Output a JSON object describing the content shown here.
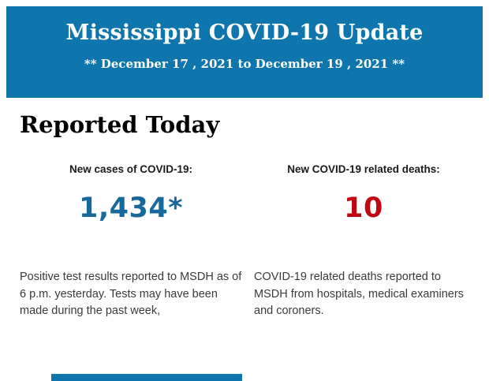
{
  "header": {
    "title": "Mississippi COVID-19 Update",
    "date_range": "** December 17 , 2021 to December 19 , 2021 **",
    "background_color": "#0e76ad",
    "text_color": "#ffffff"
  },
  "section": {
    "heading": "Reported Today"
  },
  "stats": [
    {
      "label": "New cases of COVID-19:",
      "value": "1,434*",
      "value_color": "#17699c",
      "description": "Positive test results reported to MSDH as of 6 p.m. yesterday. Tests may have been made during the past week,"
    },
    {
      "label": "New COVID-19 related deaths:",
      "value": "10",
      "value_color": "#c00712",
      "description": "COVID-19 related deaths reported to MSDH from hospitals, medical examiners and coroners."
    }
  ],
  "footer": {
    "partial_next_banner_color": "#0e76ad"
  }
}
